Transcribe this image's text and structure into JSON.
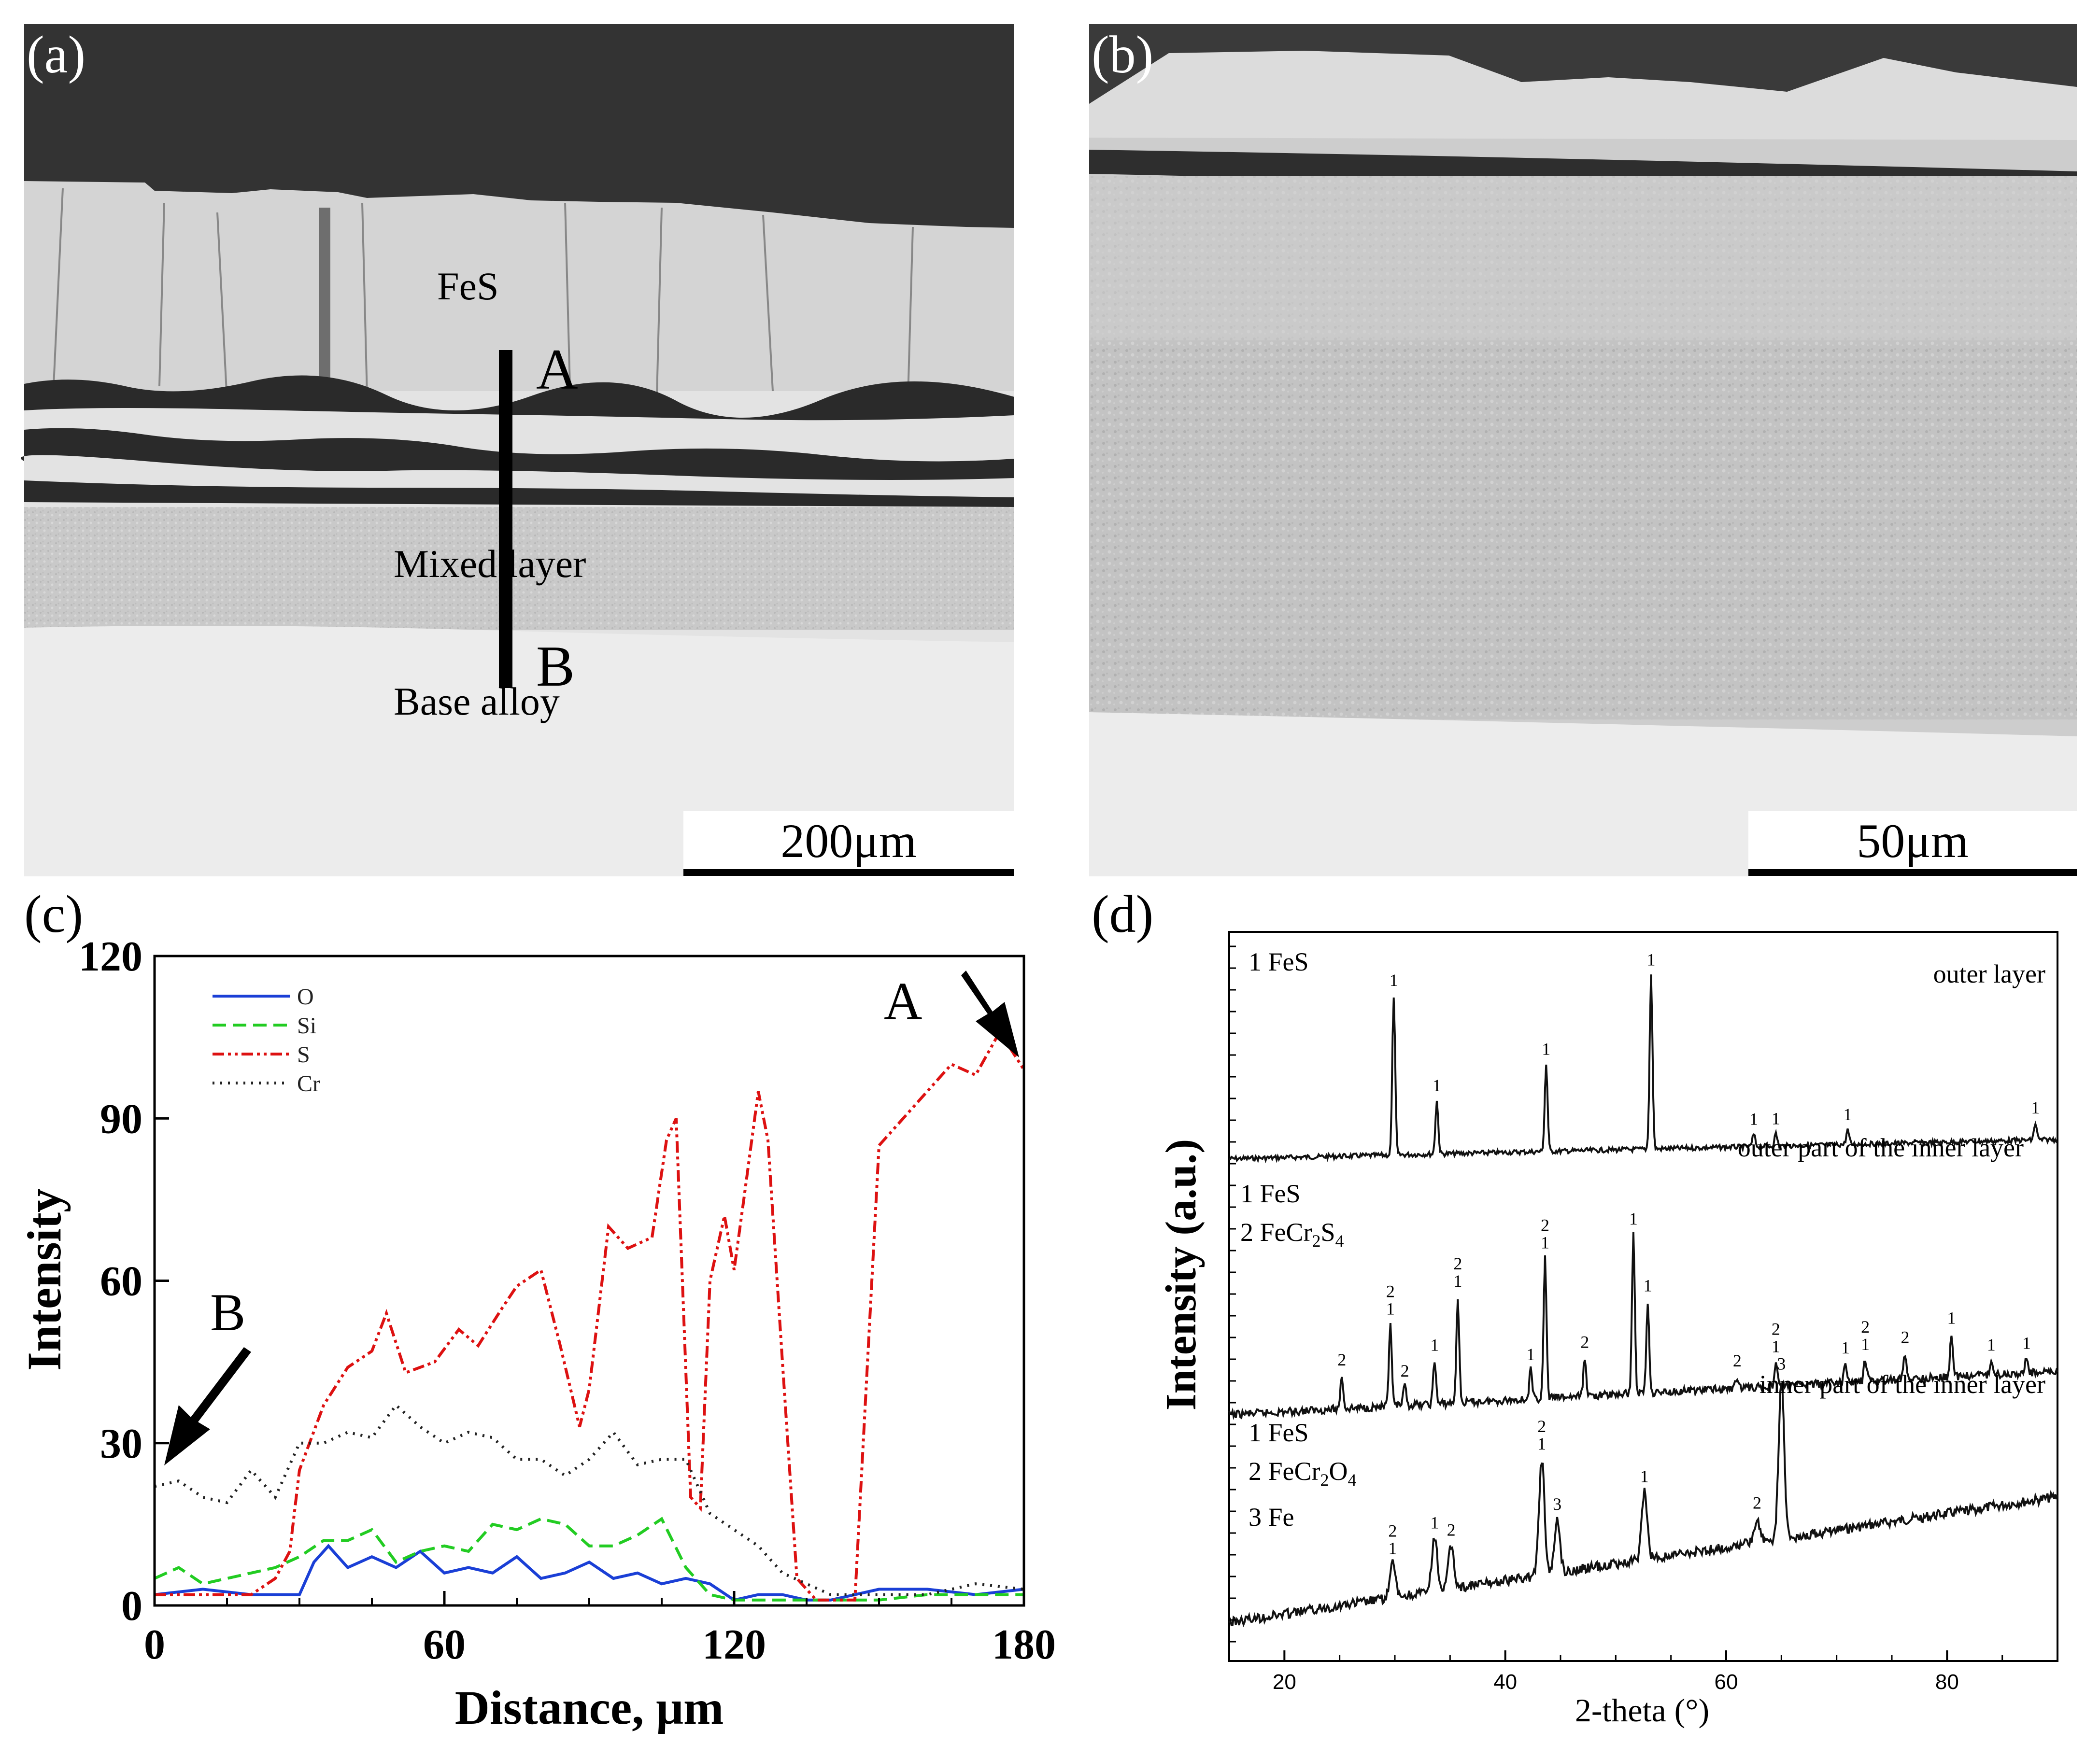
{
  "panels": {
    "a": {
      "letter": "(a)",
      "labels": {
        "fes": "FeS",
        "mixed": "Mixed layer",
        "base": "Base alloy",
        "top_marker": "A",
        "bottom_marker": "B"
      },
      "scalebar": "200μm"
    },
    "b": {
      "letter": "(b)",
      "scalebar": "50μm"
    },
    "c": {
      "letter": "(c)",
      "marker_a": "A",
      "marker_b": "B"
    },
    "d": {
      "letter": "(d)",
      "traces": [
        {
          "header": "outer layer",
          "legend": [
            "1 FeS"
          ]
        },
        {
          "header": "outer part of the inner layer",
          "legend": [
            "1 FeS",
            "2 FeCr2S4"
          ]
        },
        {
          "header": "inner part of the inner layer",
          "legend": [
            "1 FeS",
            "2 FeCr2O4",
            "3 Fe"
          ]
        }
      ]
    }
  },
  "colors": {
    "O": "#1a3fd6",
    "Si": "#22cc22",
    "S": "#dd1111",
    "Cr": "#222222"
  },
  "chart_data": [
    {
      "type": "line",
      "panel": "c",
      "xlabel": "Distance, μm",
      "ylabel": "Intensity",
      "xlim": [
        0,
        180
      ],
      "ylim": [
        0,
        120
      ],
      "xticks": [
        0,
        60,
        120,
        180
      ],
      "yticks": [
        0,
        30,
        60,
        90,
        120
      ],
      "legend_position": "top-left",
      "series": [
        {
          "name": "O",
          "x": [
            0,
            10,
            20,
            25,
            30,
            33,
            36,
            40,
            45,
            50,
            55,
            60,
            65,
            70,
            75,
            80,
            85,
            90,
            95,
            100,
            105,
            110,
            115,
            120,
            125,
            130,
            135,
            140,
            150,
            160,
            170,
            180
          ],
          "y": [
            2,
            3,
            2,
            2,
            2,
            8,
            11,
            7,
            9,
            7,
            10,
            6,
            7,
            6,
            9,
            5,
            6,
            8,
            5,
            6,
            4,
            5,
            4,
            1,
            2,
            2,
            1,
            1,
            3,
            3,
            2,
            3
          ]
        },
        {
          "name": "Si",
          "x": [
            0,
            5,
            10,
            15,
            20,
            25,
            30,
            35,
            40,
            45,
            50,
            55,
            60,
            65,
            70,
            75,
            80,
            85,
            90,
            95,
            100,
            105,
            110,
            115,
            120,
            125,
            130,
            140,
            150,
            160,
            170,
            180
          ],
          "y": [
            5,
            7,
            4,
            5,
            6,
            7,
            9,
            12,
            12,
            14,
            8,
            10,
            11,
            10,
            15,
            14,
            16,
            15,
            11,
            11,
            13,
            16,
            7,
            2,
            1,
            1,
            1,
            1,
            1,
            2,
            2,
            2
          ]
        },
        {
          "name": "S",
          "x": [
            0,
            10,
            20,
            25,
            28,
            30,
            35,
            40,
            45,
            48,
            52,
            58,
            63,
            67,
            72,
            75,
            80,
            84,
            88,
            90,
            94,
            98,
            103,
            106,
            108,
            111,
            113,
            115,
            118,
            120,
            122,
            125,
            127,
            130,
            133,
            137,
            140,
            145,
            150,
            155,
            160,
            165,
            170,
            175,
            180
          ],
          "y": [
            2,
            2,
            2,
            5,
            10,
            25,
            37,
            44,
            47,
            54,
            43,
            45,
            51,
            48,
            55,
            59,
            62,
            48,
            33,
            40,
            70,
            66,
            68,
            86,
            90,
            20,
            18,
            60,
            72,
            62,
            75,
            95,
            86,
            45,
            5,
            1,
            1,
            1,
            85,
            90,
            95,
            100,
            98,
            106,
            99
          ]
        },
        {
          "name": "Cr",
          "x": [
            0,
            5,
            10,
            15,
            20,
            25,
            30,
            35,
            40,
            45,
            50,
            55,
            60,
            65,
            70,
            75,
            80,
            85,
            90,
            95,
            100,
            105,
            110,
            115,
            120,
            125,
            130,
            140,
            150,
            160,
            170,
            180
          ],
          "y": [
            22,
            23,
            20,
            19,
            25,
            20,
            30,
            30,
            32,
            31,
            37,
            33,
            30,
            32,
            31,
            27,
            27,
            24,
            27,
            32,
            26,
            27,
            27,
            17,
            14,
            11,
            6,
            2,
            2,
            2,
            4,
            3
          ]
        }
      ]
    },
    {
      "type": "line",
      "panel": "d",
      "xlabel": "2-theta (°)",
      "ylabel": "Intensity (a.u.)",
      "xlim": [
        15,
        90
      ],
      "xticks": [
        20,
        40,
        60,
        80
      ],
      "series": [
        {
          "name": "outer layer",
          "peaks": [
            {
              "x": 29.9,
              "label": "1"
            },
            {
              "x": 33.8,
              "label": "1"
            },
            {
              "x": 43.7,
              "label": "1"
            },
            {
              "x": 53.2,
              "label": "1"
            },
            {
              "x": 62.5,
              "label": "1"
            },
            {
              "x": 64.5,
              "label": "1"
            },
            {
              "x": 71.0,
              "label": "1"
            },
            {
              "x": 88.0,
              "label": "1"
            }
          ]
        },
        {
          "name": "outer part of the inner layer",
          "peaks": [
            {
              "x": 25.2,
              "label": "2"
            },
            {
              "x": 29.6,
              "label": "2 1"
            },
            {
              "x": 30.9,
              "label": "2"
            },
            {
              "x": 33.6,
              "label": "1"
            },
            {
              "x": 35.7,
              "label": "2 1"
            },
            {
              "x": 42.3,
              "label": "1"
            },
            {
              "x": 43.6,
              "label": "2 1"
            },
            {
              "x": 47.2,
              "label": "2"
            },
            {
              "x": 51.6,
              "label": "1"
            },
            {
              "x": 52.9,
              "label": "1"
            },
            {
              "x": 61.0,
              "label": "2"
            },
            {
              "x": 64.5,
              "label": "2 1"
            },
            {
              "x": 70.8,
              "label": "1"
            },
            {
              "x": 72.6,
              "label": "2 1"
            },
            {
              "x": 76.2,
              "label": "2"
            },
            {
              "x": 80.4,
              "label": "1"
            },
            {
              "x": 84.0,
              "label": "1"
            },
            {
              "x": 87.2,
              "label": "1"
            }
          ]
        },
        {
          "name": "inner part of the inner layer",
          "peaks": [
            {
              "x": 29.8,
              "label": "2 1"
            },
            {
              "x": 33.6,
              "label": "1"
            },
            {
              "x": 35.1,
              "label": "2"
            },
            {
              "x": 43.3,
              "label": "2 1"
            },
            {
              "x": 44.7,
              "label": "3"
            },
            {
              "x": 52.6,
              "label": "1"
            },
            {
              "x": 62.8,
              "label": "2"
            },
            {
              "x": 65.0,
              "label": "3"
            }
          ]
        }
      ]
    }
  ]
}
